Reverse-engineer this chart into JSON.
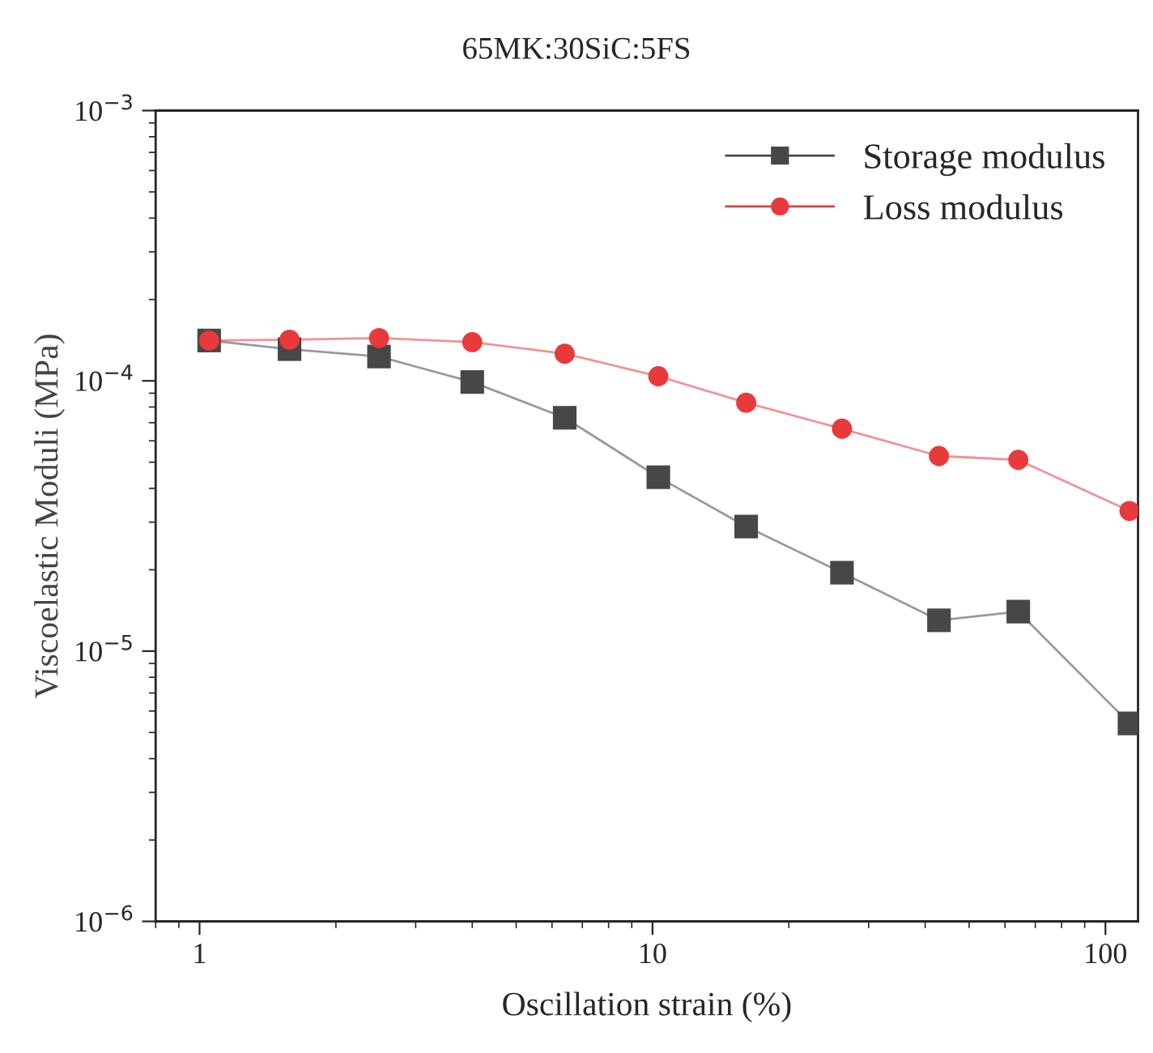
{
  "chart_data": {
    "type": "line",
    "title": "65MK:30SiC:5FS",
    "xlabel": "Oscillation strain (%)",
    "ylabel": "Viscoelastic Moduli (MPa)",
    "x": [
      1.05,
      1.58,
      2.49,
      4.0,
      6.4,
      10.3,
      16.1,
      26.2,
      42.9,
      64.2,
      113
    ],
    "series": [
      {
        "name": "Storage modulus",
        "color": "#474747",
        "marker": "square",
        "values": [
          0.000141,
          0.000131,
          0.000123,
          9.9e-05,
          7.3e-05,
          4.4e-05,
          2.89e-05,
          1.95e-05,
          1.3e-05,
          1.4e-05,
          5.4e-06
        ]
      },
      {
        "name": "Loss modulus",
        "color": "#e8393b",
        "marker": "circle",
        "values": [
          0.000141,
          0.000142,
          0.000144,
          0.000139,
          0.000126,
          0.000104,
          8.3e-05,
          6.65e-05,
          5.27e-05,
          5.1e-05,
          3.3e-05
        ]
      }
    ],
    "log": "xy",
    "xlim": [
      0.8,
      118
    ],
    "xticks": [
      1,
      10,
      100
    ],
    "ylim": [
      1e-06,
      0.001
    ],
    "yticks": [
      {
        "value": 1e-06,
        "label": "10$^{−6}$"
      },
      {
        "value": 1e-05,
        "label": "10$^{−5}$"
      },
      {
        "value": 0.0001,
        "label": "10$^{−4}$"
      },
      {
        "value": 0.001,
        "label": "10$^{−3}$"
      }
    ],
    "legend": "top right",
    "grid": false,
    "line_style": "solid"
  }
}
